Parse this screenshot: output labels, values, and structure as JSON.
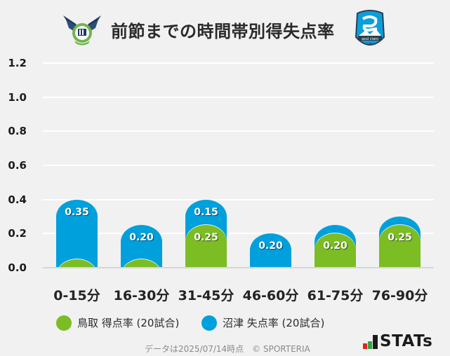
{
  "header": {
    "title": "前節までの時間帯別得失点率",
    "left_logo": "gainare-tottori-emblem",
    "right_logo": "azul-claro-numazu-emblem",
    "right_logo_text": "azul claro",
    "right_logo_year": "1990"
  },
  "chart_data": {
    "type": "bar",
    "stacked": true,
    "title": "前節までの時間帯別得失点率",
    "xlabel": "",
    "ylabel": "",
    "ylim": [
      0,
      1.2
    ],
    "yticks": [
      "0.0",
      "0.2",
      "0.4",
      "0.6",
      "0.8",
      "1.0",
      "1.2"
    ],
    "grid": true,
    "legend_position": "bottom",
    "categories": [
      "0-15分",
      "16-30分",
      "31-45分",
      "46-60分",
      "61-75分",
      "76-90分"
    ],
    "series": [
      {
        "name": "鳥取 得点率 (20試合)",
        "color": "#7bbd23",
        "values": [
          0.05,
          0.05,
          0.25,
          0.0,
          0.2,
          0.25
        ],
        "labels": [
          null,
          null,
          "0.25",
          null,
          "0.20",
          "0.25"
        ]
      },
      {
        "name": "沼津 失点率 (20試合)",
        "color": "#00a0dc",
        "values": [
          0.35,
          0.2,
          0.15,
          0.2,
          0.05,
          0.05
        ],
        "labels": [
          "0.35",
          "0.20",
          "0.15",
          "0.20",
          null,
          null
        ]
      }
    ]
  },
  "legend": [
    {
      "label": "鳥取 得点率 (20試合)",
      "color": "#7bbd23"
    },
    {
      "label": "沼津 失点率 (20試合)",
      "color": "#00a0dc"
    }
  ],
  "footer": {
    "note": "データは2025/07/14時点　© SPORTERIA",
    "brand": "STATs"
  }
}
